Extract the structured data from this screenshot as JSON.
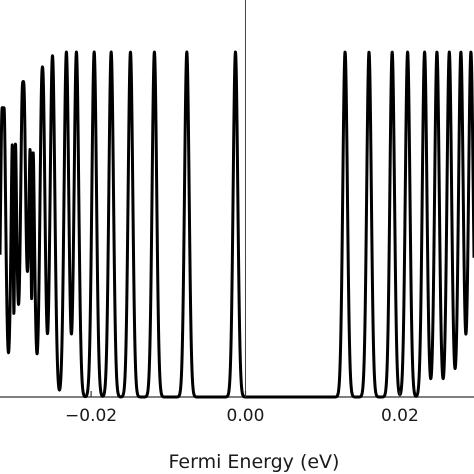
{
  "chart_data": {
    "type": "line",
    "xlabel": "Fermi Energy (eV)",
    "ylabel": "",
    "title": "",
    "xlim": [
      -0.0318,
      0.0296
    ],
    "ylim": [
      0,
      1
    ],
    "xticks": [
      {
        "value": -0.02,
        "label": "−0.02"
      },
      {
        "value": 0.0,
        "label": "0.00"
      },
      {
        "value": 0.02,
        "label": "0.02"
      }
    ],
    "zero_line": 0.0,
    "series": [
      {
        "peak_width": 0.00042,
        "peaks": [
          {
            "x": -0.0314,
            "y": 0.94,
            "dip": 0.2
          },
          {
            "x": -0.03,
            "y": 0.96,
            "dip": 0.74
          },
          {
            "x": -0.0288,
            "y": 0.94,
            "dip": 0.1
          },
          {
            "x": -0.0277,
            "y": 0.92,
            "dip": 0.66
          },
          {
            "x": -0.0263,
            "y": 0.93,
            "dip": 0.05
          },
          {
            "x": -0.025,
            "y": 0.92,
            "dip": 0.01
          },
          {
            "x": -0.0232,
            "y": 0.92,
            "dip": 0.0
          },
          {
            "x": -0.0219,
            "y": 0.92,
            "dip": 0.0
          },
          {
            "x": -0.0196,
            "y": 0.92,
            "dip": 0.0
          },
          {
            "x": -0.0174,
            "y": 0.92,
            "dip": 0.0
          },
          {
            "x": -0.0149,
            "y": 0.92,
            "dip": 0.0
          },
          {
            "x": -0.0118,
            "y": 0.92,
            "dip": 0.0
          },
          {
            "x": -0.0076,
            "y": 0.92,
            "dip": 0.0
          },
          {
            "x": -0.0013,
            "y": 0.92,
            "dip": 0.0
          },
          {
            "x": 0.0129,
            "y": 0.92,
            "dip": 0.0
          },
          {
            "x": 0.016,
            "y": 0.92,
            "dip": 0.0
          },
          {
            "x": 0.019,
            "y": 0.92,
            "dip": 0.0
          },
          {
            "x": 0.021,
            "y": 0.92,
            "dip": 0.0
          },
          {
            "x": 0.0232,
            "y": 0.92,
            "dip": 0.0
          },
          {
            "x": 0.0248,
            "y": 0.92,
            "dip": 0.0
          },
          {
            "x": 0.0264,
            "y": 0.92,
            "dip": 0.0
          },
          {
            "x": 0.0279,
            "y": 0.92,
            "dip": 0.0
          },
          {
            "x": 0.0292,
            "y": 0.92,
            "dip": 0.0
          }
        ]
      }
    ]
  }
}
